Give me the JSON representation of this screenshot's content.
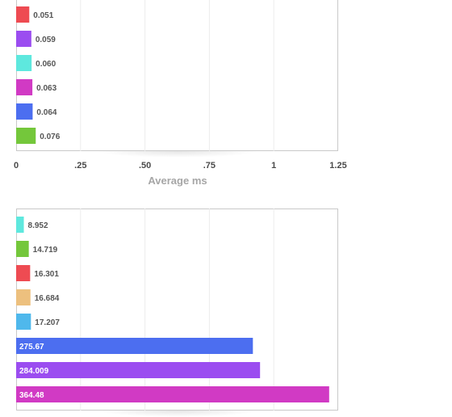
{
  "chart_data": [
    {
      "type": "bar",
      "orientation": "horizontal",
      "values": [
        0.051,
        0.059,
        0.06,
        0.063,
        0.064,
        0.076
      ],
      "value_labels": [
        "0.051",
        "0.059",
        "0.060",
        "0.063",
        "0.064",
        "0.076"
      ],
      "colors": [
        "#ee4b52",
        "#9b4df0",
        "#5ee8de",
        "#d13ac4",
        "#4c6ef0",
        "#74c73b"
      ],
      "xlim": [
        0,
        1.25
      ],
      "xticks": [
        0,
        0.25,
        0.5,
        0.75,
        1,
        1.25
      ],
      "xtick_labels": [
        "0",
        ".25",
        ".50",
        ".75",
        "1",
        "1.25"
      ],
      "xlabel": "Average ms",
      "grid": true
    },
    {
      "type": "bar",
      "orientation": "horizontal",
      "values": [
        8.952,
        14.719,
        16.301,
        16.684,
        17.207,
        275.67,
        284.009,
        364.48
      ],
      "value_labels": [
        "8.952",
        "14.719",
        "16.301",
        "16.684",
        "17.207",
        "275.67",
        "284.009",
        "364.48"
      ],
      "colors": [
        "#5ee8de",
        "#74c73b",
        "#ee4b52",
        "#edc07e",
        "#4fb8ec",
        "#4c6ef0",
        "#9b4df0",
        "#d13ac4"
      ],
      "xlim": [
        0,
        375
      ],
      "grid": true
    }
  ]
}
